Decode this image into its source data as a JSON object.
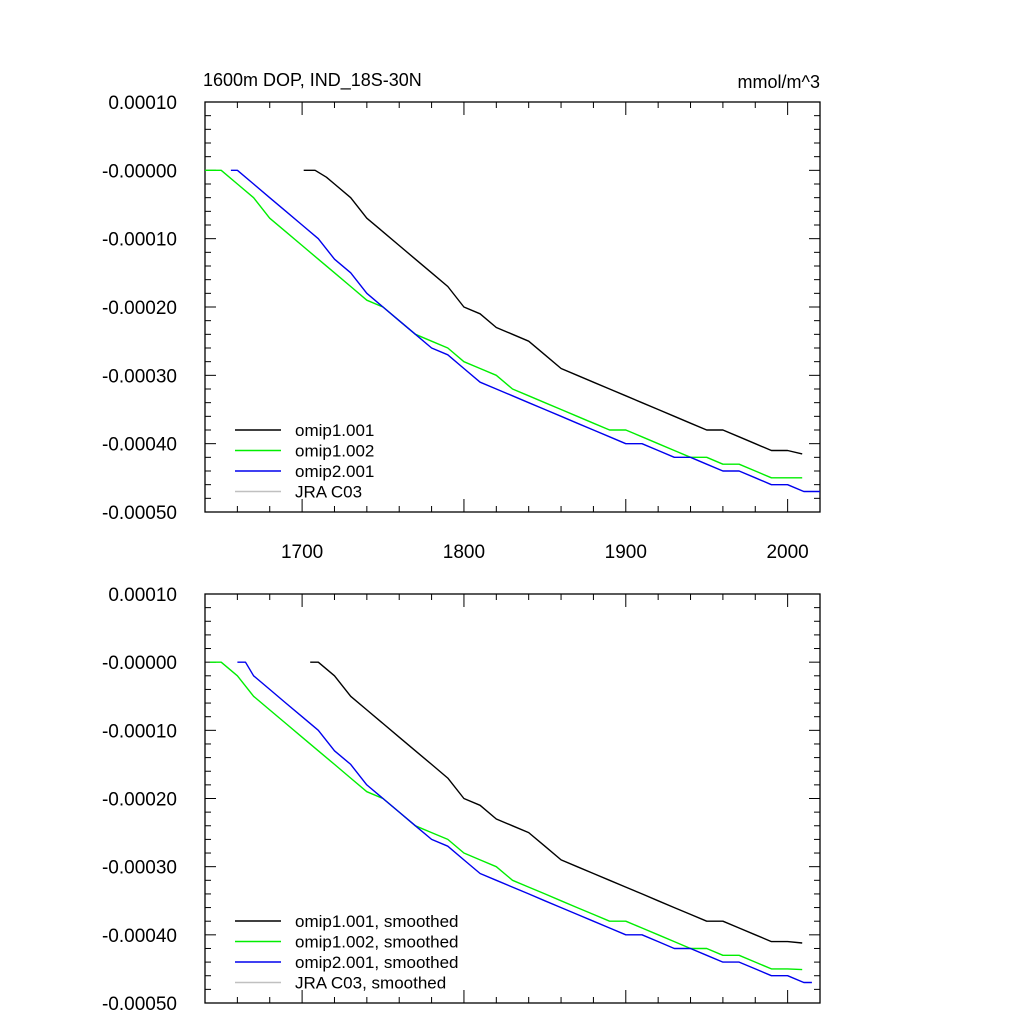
{
  "chart_data": [
    {
      "type": "line",
      "title": "1600m DOP, IND_18S-30N",
      "units": "mmol/m^3",
      "xlim": [
        1640,
        2020
      ],
      "ylim": [
        -0.0005,
        0.0001
      ],
      "x_ticks": [
        1700,
        1800,
        1900,
        2000
      ],
      "x_tick_labels": [
        "1700",
        "1800",
        "1900",
        "2000"
      ],
      "y_ticks": [
        0.0001,
        0.0,
        -0.0001,
        -0.0002,
        -0.0003,
        -0.0004,
        -0.0005
      ],
      "y_tick_labels": [
        "0.00010",
        "-0.00000",
        "-0.00010",
        "-0.00020",
        "-0.00030",
        "-0.00040",
        "-0.00050"
      ],
      "legend_position": "bottom-left",
      "series": [
        {
          "name": "omip1.001",
          "color": "#000000",
          "x": [
            1701,
            1708,
            1715,
            1720,
            1730,
            1740,
            1750,
            1760,
            1770,
            1780,
            1790,
            1800,
            1810,
            1820,
            1830,
            1840,
            1850,
            1860,
            1870,
            1880,
            1890,
            1900,
            1910,
            1920,
            1930,
            1940,
            1950,
            1960,
            1970,
            1980,
            1990,
            2000,
            2009
          ],
          "y": [
            0.0,
            0.0,
            -1e-05,
            -2e-05,
            -4e-05,
            -7e-05,
            -9e-05,
            -0.00011,
            -0.00013,
            -0.00015,
            -0.00017,
            -0.0002,
            -0.00021,
            -0.00023,
            -0.00024,
            -0.00025,
            -0.00027,
            -0.00029,
            -0.0003,
            -0.00031,
            -0.00032,
            -0.00033,
            -0.00034,
            -0.00035,
            -0.00036,
            -0.00037,
            -0.00038,
            -0.00038,
            -0.00039,
            -0.0004,
            -0.00041,
            -0.00041,
            -0.000415
          ]
        },
        {
          "name": "omip1.002",
          "color": "#00ee00",
          "x": [
            1640,
            1650,
            1660,
            1670,
            1680,
            1690,
            1700,
            1710,
            1720,
            1730,
            1740,
            1750,
            1760,
            1770,
            1780,
            1790,
            1800,
            1810,
            1820,
            1830,
            1840,
            1850,
            1860,
            1870,
            1880,
            1890,
            1900,
            1910,
            1920,
            1930,
            1940,
            1950,
            1960,
            1970,
            1980,
            1990,
            2000,
            2009
          ],
          "y": [
            0.0,
            0.0,
            -2e-05,
            -4e-05,
            -7e-05,
            -9e-05,
            -0.00011,
            -0.00013,
            -0.00015,
            -0.00017,
            -0.00019,
            -0.0002,
            -0.00022,
            -0.00024,
            -0.00025,
            -0.00026,
            -0.00028,
            -0.00029,
            -0.0003,
            -0.00032,
            -0.00033,
            -0.00034,
            -0.00035,
            -0.00036,
            -0.00037,
            -0.00038,
            -0.00038,
            -0.00039,
            -0.0004,
            -0.00041,
            -0.00042,
            -0.00042,
            -0.00043,
            -0.00043,
            -0.00044,
            -0.00045,
            -0.00045,
            -0.00045
          ]
        },
        {
          "name": "omip2.001",
          "color": "#0000ee",
          "x": [
            1656,
            1660,
            1670,
            1680,
            1690,
            1700,
            1710,
            1720,
            1730,
            1740,
            1750,
            1760,
            1770,
            1780,
            1790,
            1800,
            1810,
            1820,
            1830,
            1840,
            1850,
            1860,
            1870,
            1880,
            1890,
            1900,
            1910,
            1920,
            1930,
            1940,
            1950,
            1960,
            1970,
            1980,
            1990,
            2000,
            2010,
            2020
          ],
          "y": [
            0.0,
            0.0,
            -2e-05,
            -4e-05,
            -6e-05,
            -8e-05,
            -0.0001,
            -0.00013,
            -0.00015,
            -0.00018,
            -0.0002,
            -0.00022,
            -0.00024,
            -0.00026,
            -0.00027,
            -0.00029,
            -0.00031,
            -0.00032,
            -0.00033,
            -0.00034,
            -0.00035,
            -0.00036,
            -0.00037,
            -0.00038,
            -0.00039,
            -0.0004,
            -0.0004,
            -0.00041,
            -0.00042,
            -0.00042,
            -0.00043,
            -0.00044,
            -0.00044,
            -0.00045,
            -0.00046,
            -0.00046,
            -0.00047,
            -0.00047
          ]
        },
        {
          "name": "JRA C03",
          "color": "#c0c0c0",
          "x": [],
          "y": []
        }
      ]
    },
    {
      "type": "line",
      "xlim": [
        1640,
        2020
      ],
      "ylim": [
        -0.0005,
        0.0001
      ],
      "x_ticks": [
        1700,
        1800,
        1900,
        2000
      ],
      "x_tick_labels": [],
      "y_ticks": [
        0.0001,
        0.0,
        -0.0001,
        -0.0002,
        -0.0003,
        -0.0004,
        -0.0005
      ],
      "y_tick_labels": [
        "0.00010",
        "-0.00000",
        "-0.00010",
        "-0.00020",
        "-0.00030",
        "-0.00040",
        "-0.00050"
      ],
      "legend_position": "bottom-left",
      "series": [
        {
          "name": "omip1.001, smoothed",
          "color": "#000000",
          "x": [
            1705,
            1710,
            1720,
            1730,
            1740,
            1750,
            1760,
            1770,
            1780,
            1790,
            1800,
            1810,
            1820,
            1830,
            1840,
            1850,
            1860,
            1870,
            1880,
            1890,
            1900,
            1910,
            1920,
            1930,
            1940,
            1950,
            1960,
            1970,
            1980,
            1990,
            2000,
            2009
          ],
          "y": [
            0.0,
            0.0,
            -2e-05,
            -5e-05,
            -7e-05,
            -9e-05,
            -0.00011,
            -0.00013,
            -0.00015,
            -0.00017,
            -0.0002,
            -0.00021,
            -0.00023,
            -0.00024,
            -0.00025,
            -0.00027,
            -0.00029,
            -0.0003,
            -0.00031,
            -0.00032,
            -0.00033,
            -0.00034,
            -0.00035,
            -0.00036,
            -0.00037,
            -0.00038,
            -0.00038,
            -0.00039,
            -0.0004,
            -0.00041,
            -0.00041,
            -0.000412
          ]
        },
        {
          "name": "omip1.002, smoothed",
          "color": "#00ee00",
          "x": [
            1643,
            1650,
            1660,
            1670,
            1680,
            1690,
            1700,
            1710,
            1720,
            1730,
            1740,
            1750,
            1760,
            1770,
            1780,
            1790,
            1800,
            1810,
            1820,
            1830,
            1840,
            1850,
            1860,
            1870,
            1880,
            1890,
            1900,
            1910,
            1920,
            1930,
            1940,
            1950,
            1960,
            1970,
            1980,
            1990,
            2000,
            2009
          ],
          "y": [
            0.0,
            0.0,
            -2e-05,
            -5e-05,
            -7e-05,
            -9e-05,
            -0.00011,
            -0.00013,
            -0.00015,
            -0.00017,
            -0.00019,
            -0.0002,
            -0.00022,
            -0.00024,
            -0.00025,
            -0.00026,
            -0.00028,
            -0.00029,
            -0.0003,
            -0.00032,
            -0.00033,
            -0.00034,
            -0.00035,
            -0.00036,
            -0.00037,
            -0.00038,
            -0.00038,
            -0.00039,
            -0.0004,
            -0.00041,
            -0.00042,
            -0.00042,
            -0.00043,
            -0.00043,
            -0.00044,
            -0.00045,
            -0.00045,
            -0.000451
          ]
        },
        {
          "name": "omip2.001, smoothed",
          "color": "#0000ee",
          "x": [
            1660,
            1665,
            1670,
            1680,
            1690,
            1700,
            1710,
            1720,
            1730,
            1740,
            1750,
            1760,
            1770,
            1780,
            1790,
            1800,
            1810,
            1820,
            1830,
            1840,
            1850,
            1860,
            1870,
            1880,
            1890,
            1900,
            1910,
            1920,
            1930,
            1940,
            1950,
            1960,
            1970,
            1980,
            1990,
            2000,
            2010,
            2015
          ],
          "y": [
            0.0,
            0.0,
            -2e-05,
            -4e-05,
            -6e-05,
            -8e-05,
            -0.0001,
            -0.00013,
            -0.00015,
            -0.00018,
            -0.0002,
            -0.00022,
            -0.00024,
            -0.00026,
            -0.00027,
            -0.00029,
            -0.00031,
            -0.00032,
            -0.00033,
            -0.00034,
            -0.00035,
            -0.00036,
            -0.00037,
            -0.00038,
            -0.00039,
            -0.0004,
            -0.0004,
            -0.00041,
            -0.00042,
            -0.00042,
            -0.00043,
            -0.00044,
            -0.00044,
            -0.00045,
            -0.00046,
            -0.00046,
            -0.00047,
            -0.00047
          ]
        },
        {
          "name": "JRA C03, smoothed",
          "color": "#c0c0c0",
          "x": [],
          "y": []
        }
      ]
    }
  ]
}
